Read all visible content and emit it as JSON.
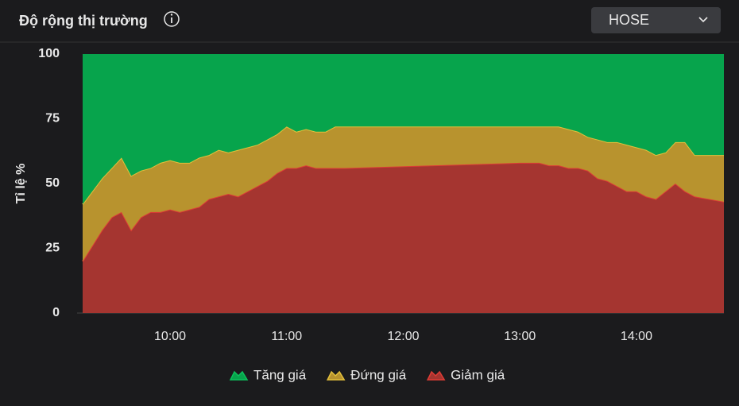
{
  "selector": "HOSE",
  "chart_data": {
    "type": "stacked-area",
    "title": "Độ rộng thị trường",
    "ylabel": "Tỉ lệ %",
    "x": [
      "09:15",
      "09:20",
      "09:25",
      "09:30",
      "09:35",
      "09:40",
      "09:45",
      "09:50",
      "09:55",
      "10:00",
      "10:05",
      "10:10",
      "10:15",
      "10:20",
      "10:25",
      "10:30",
      "10:35",
      "10:40",
      "10:45",
      "10:50",
      "10:55",
      "11:00",
      "11:05",
      "11:10",
      "11:15",
      "11:20",
      "11:25",
      "11:30",
      "13:00",
      "13:05",
      "13:10",
      "13:15",
      "13:20",
      "13:25",
      "13:30",
      "13:35",
      "13:40",
      "13:45",
      "13:50",
      "13:55",
      "14:00",
      "14:05",
      "14:10",
      "14:15",
      "14:20",
      "14:25",
      "14:30",
      "14:45"
    ],
    "xlim": [
      "09:15",
      "14:45"
    ],
    "xticks": [
      "10:00",
      "11:00",
      "12:00",
      "13:00",
      "14:00"
    ],
    "ylim": [
      0,
      100
    ],
    "yticks": [
      0,
      25,
      50,
      75,
      100
    ],
    "series": [
      {
        "name": "Tăng giá",
        "color": "#07a44c",
        "values": [
          58,
          53,
          48,
          44,
          40,
          47,
          45,
          44,
          42,
          41,
          42,
          42,
          40,
          39,
          37,
          38,
          37,
          36,
          35,
          33,
          31,
          28,
          30,
          29,
          30,
          30,
          28,
          28,
          28,
          28,
          28,
          28,
          28,
          29,
          30,
          32,
          33,
          34,
          34,
          35,
          36,
          37,
          39,
          38,
          34,
          34,
          39,
          39
        ]
      },
      {
        "name": "Đứng giá",
        "color": "#b8932e",
        "values": [
          22,
          21,
          20,
          19,
          21,
          21,
          18,
          17,
          19,
          19,
          19,
          18,
          19,
          17,
          18,
          16,
          18,
          17,
          16,
          16,
          15,
          16,
          14,
          14,
          14,
          14,
          16,
          16,
          14,
          14,
          14,
          15,
          15,
          15,
          14,
          13,
          15,
          15,
          17,
          18,
          17,
          18,
          17,
          15,
          16,
          19,
          16,
          18
        ]
      },
      {
        "name": "Giảm giá",
        "color": "#a53530",
        "values": [
          20,
          26,
          32,
          37,
          39,
          32,
          37,
          39,
          39,
          40,
          39,
          40,
          41,
          44,
          45,
          46,
          45,
          47,
          49,
          51,
          54,
          56,
          56,
          57,
          56,
          56,
          56,
          56,
          58,
          58,
          58,
          57,
          57,
          56,
          56,
          55,
          52,
          51,
          49,
          47,
          47,
          45,
          44,
          47,
          50,
          47,
          45,
          43
        ]
      }
    ]
  }
}
